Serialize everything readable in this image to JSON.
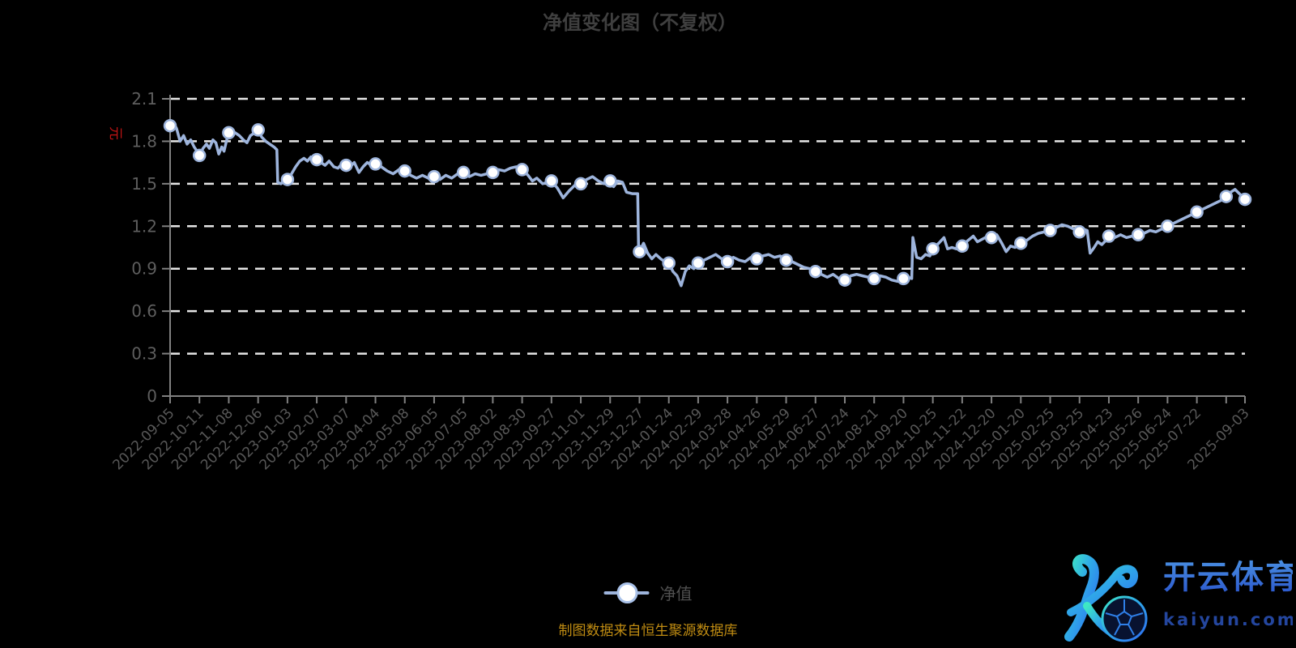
{
  "page": {
    "title": "净值变化图（不复权）",
    "source_note": "制图数据来自恒生聚源数据库",
    "watermark": {
      "brand": "开云体育",
      "domain": "kaiyun.com"
    }
  },
  "chart_data": {
    "type": "line",
    "title": "净值变化图（不复权）",
    "series_name": "净值",
    "unit": "元",
    "legend": {
      "label": "净值",
      "position": "bottom-center"
    },
    "grid": {
      "horizontal_dashed": true,
      "vertical": false
    },
    "colors": {
      "background": "#000000",
      "line": "#9db4dc",
      "marker_fill": "#ffffff",
      "marker_stroke": "#9db4dc",
      "gridline": "#e6e6e6",
      "axis": "#808080",
      "axis_label": "#5e5e5e",
      "title": "#3f3f3f",
      "unit_label": "#c01414",
      "source_note": "#c08c12"
    },
    "y_axis": {
      "min": 0,
      "max": 2.1,
      "interval": 0.3,
      "ticks": [
        0,
        0.3,
        0.6,
        0.9,
        1.2,
        1.5,
        1.8,
        2.1
      ],
      "tick_labels": [
        "0",
        "0.3",
        "0.6",
        "0.9",
        "1.2",
        "1.5",
        "1.8",
        "2.1"
      ]
    },
    "x_axis": {
      "labels": [
        "2022-09-05",
        "2022-10-11",
        "2022-11-08",
        "2022-12-06",
        "2023-01-03",
        "2023-02-07",
        "2023-03-07",
        "2023-04-04",
        "2023-05-08",
        "2023-06-05",
        "2023-07-05",
        "2023-08-02",
        "2023-08-30",
        "2023-09-27",
        "2023-11-01",
        "2023-11-29",
        "2023-12-27",
        "2024-01-24",
        "2024-02-29",
        "2024-03-28",
        "2024-04-26",
        "2024-05-29",
        "2024-06-27",
        "2024-07-24",
        "2024-08-21",
        "2024-09-20",
        "2024-10-25",
        "2024-11-22",
        "2024-12-20",
        "2025-01-20",
        "2025-02-25",
        "2025-03-25",
        "2025-04-23",
        "2025-05-26",
        "2025-06-24",
        "2025-07-22",
        "2025-09-03"
      ],
      "label_positions_u": [
        0,
        1,
        2,
        3,
        4,
        5,
        6,
        7,
        8,
        9,
        10,
        11,
        12,
        13,
        14,
        15,
        16,
        17,
        18,
        19,
        20,
        21,
        22,
        23,
        24,
        25,
        26,
        27,
        28,
        29,
        30,
        31,
        32,
        33,
        34,
        35,
        36.64
      ],
      "tick_positions_u": [
        0,
        1,
        2,
        3,
        4,
        5,
        6,
        7,
        8,
        9,
        10,
        11,
        12,
        13,
        14,
        15,
        16,
        17,
        18,
        19,
        20,
        21,
        22,
        23,
        24,
        25,
        26,
        27,
        28,
        29,
        30,
        31,
        32,
        33,
        34,
        35,
        36,
        36.64
      ],
      "u_max": 36.64
    },
    "markers_uv": [
      [
        0,
        1.91
      ],
      [
        1,
        1.7
      ],
      [
        2,
        1.86
      ],
      [
        3,
        1.88
      ],
      [
        4,
        1.53
      ],
      [
        5,
        1.67
      ],
      [
        6,
        1.63
      ],
      [
        7,
        1.64
      ],
      [
        8,
        1.59
      ],
      [
        9,
        1.55
      ],
      [
        10,
        1.58
      ],
      [
        11,
        1.58
      ],
      [
        12,
        1.6
      ],
      [
        13,
        1.52
      ],
      [
        14,
        1.5
      ],
      [
        15,
        1.52
      ],
      [
        16,
        1.02
      ],
      [
        17,
        0.94
      ],
      [
        18,
        0.94
      ],
      [
        19,
        0.95
      ],
      [
        20,
        0.97
      ],
      [
        21,
        0.96
      ],
      [
        22,
        0.88
      ],
      [
        23,
        0.82
      ],
      [
        24,
        0.83
      ],
      [
        25,
        0.83
      ],
      [
        26,
        1.04
      ],
      [
        27,
        1.06
      ],
      [
        28,
        1.12
      ],
      [
        29,
        1.08
      ],
      [
        30,
        1.17
      ],
      [
        31,
        1.16
      ],
      [
        32,
        1.13
      ],
      [
        33,
        1.14
      ],
      [
        34,
        1.2
      ],
      [
        35,
        1.3
      ],
      [
        36,
        1.41
      ],
      [
        36.64,
        1.39
      ]
    ],
    "dense_uv": [
      [
        0,
        1.91
      ],
      [
        0.12,
        1.93
      ],
      [
        0.22,
        1.89
      ],
      [
        0.34,
        1.8
      ],
      [
        0.46,
        1.84
      ],
      [
        0.58,
        1.78
      ],
      [
        0.7,
        1.81
      ],
      [
        0.82,
        1.76
      ],
      [
        0.92,
        1.73
      ],
      [
        1.0,
        1.7
      ],
      [
        1.12,
        1.75
      ],
      [
        1.24,
        1.78
      ],
      [
        1.34,
        1.75
      ],
      [
        1.46,
        1.81
      ],
      [
        1.56,
        1.79
      ],
      [
        1.66,
        1.71
      ],
      [
        1.76,
        1.76
      ],
      [
        1.84,
        1.73
      ],
      [
        1.92,
        1.8
      ],
      [
        2.0,
        1.86
      ],
      [
        2.1,
        1.84
      ],
      [
        2.22,
        1.86
      ],
      [
        2.36,
        1.84
      ],
      [
        2.5,
        1.81
      ],
      [
        2.62,
        1.79
      ],
      [
        2.74,
        1.84
      ],
      [
        2.88,
        1.86
      ],
      [
        3.0,
        1.88
      ],
      [
        3.12,
        1.83
      ],
      [
        3.26,
        1.8
      ],
      [
        3.4,
        1.78
      ],
      [
        3.54,
        1.76
      ],
      [
        3.64,
        1.74
      ],
      [
        3.67,
        1.51
      ],
      [
        3.78,
        1.5
      ],
      [
        3.88,
        1.52
      ],
      [
        4.0,
        1.53
      ],
      [
        4.14,
        1.57
      ],
      [
        4.28,
        1.62
      ],
      [
        4.42,
        1.66
      ],
      [
        4.56,
        1.68
      ],
      [
        4.68,
        1.66
      ],
      [
        4.8,
        1.69
      ],
      [
        4.9,
        1.68
      ],
      [
        5.0,
        1.67
      ],
      [
        5.14,
        1.65
      ],
      [
        5.28,
        1.63
      ],
      [
        5.42,
        1.66
      ],
      [
        5.58,
        1.62
      ],
      [
        5.72,
        1.61
      ],
      [
        5.86,
        1.64
      ],
      [
        6.0,
        1.63
      ],
      [
        6.14,
        1.62
      ],
      [
        6.28,
        1.65
      ],
      [
        6.44,
        1.58
      ],
      [
        6.58,
        1.62
      ],
      [
        6.72,
        1.65
      ],
      [
        6.86,
        1.63
      ],
      [
        7.0,
        1.64
      ],
      [
        7.2,
        1.62
      ],
      [
        7.4,
        1.59
      ],
      [
        7.6,
        1.57
      ],
      [
        7.8,
        1.6
      ],
      [
        8.0,
        1.59
      ],
      [
        8.2,
        1.56
      ],
      [
        8.4,
        1.54
      ],
      [
        8.6,
        1.56
      ],
      [
        8.8,
        1.54
      ],
      [
        9.0,
        1.55
      ],
      [
        9.2,
        1.53
      ],
      [
        9.4,
        1.56
      ],
      [
        9.6,
        1.54
      ],
      [
        9.8,
        1.57
      ],
      [
        10.0,
        1.58
      ],
      [
        10.2,
        1.55
      ],
      [
        10.4,
        1.57
      ],
      [
        10.6,
        1.56
      ],
      [
        10.8,
        1.57
      ],
      [
        11.0,
        1.58
      ],
      [
        11.2,
        1.6
      ],
      [
        11.4,
        1.59
      ],
      [
        11.6,
        1.61
      ],
      [
        11.8,
        1.62
      ],
      [
        12.0,
        1.6
      ],
      [
        12.2,
        1.56
      ],
      [
        12.35,
        1.52
      ],
      [
        12.5,
        1.54
      ],
      [
        12.7,
        1.5
      ],
      [
        12.85,
        1.51
      ],
      [
        13.0,
        1.52
      ],
      [
        13.2,
        1.47
      ],
      [
        13.4,
        1.4
      ],
      [
        13.6,
        1.45
      ],
      [
        13.8,
        1.49
      ],
      [
        14.0,
        1.5
      ],
      [
        14.2,
        1.53
      ],
      [
        14.4,
        1.55
      ],
      [
        14.6,
        1.52
      ],
      [
        14.8,
        1.5
      ],
      [
        15.0,
        1.52
      ],
      [
        15.12,
        1.48
      ],
      [
        15.26,
        1.52
      ],
      [
        15.42,
        1.51
      ],
      [
        15.56,
        1.44
      ],
      [
        15.75,
        1.43
      ],
      [
        15.94,
        1.43
      ],
      [
        15.97,
        1.03
      ],
      [
        16.0,
        1.02
      ],
      [
        16.14,
        1.08
      ],
      [
        16.28,
        1.01
      ],
      [
        16.42,
        0.97
      ],
      [
        16.56,
        1.0
      ],
      [
        16.72,
        0.97
      ],
      [
        16.86,
        0.95
      ],
      [
        17.0,
        0.94
      ],
      [
        17.14,
        0.88
      ],
      [
        17.28,
        0.85
      ],
      [
        17.42,
        0.78
      ],
      [
        17.56,
        0.88
      ],
      [
        17.7,
        0.92
      ],
      [
        17.85,
        0.9
      ],
      [
        18.0,
        0.94
      ],
      [
        18.2,
        0.96
      ],
      [
        18.4,
        0.98
      ],
      [
        18.6,
        1.0
      ],
      [
        18.8,
        0.97
      ],
      [
        19.0,
        0.95
      ],
      [
        19.2,
        0.98
      ],
      [
        19.4,
        0.96
      ],
      [
        19.6,
        0.95
      ],
      [
        19.8,
        0.98
      ],
      [
        20.0,
        0.97
      ],
      [
        20.2,
        0.99
      ],
      [
        20.4,
        1.0
      ],
      [
        20.6,
        0.98
      ],
      [
        20.8,
        0.99
      ],
      [
        21.0,
        0.96
      ],
      [
        21.2,
        0.95
      ],
      [
        21.4,
        0.93
      ],
      [
        21.6,
        0.91
      ],
      [
        21.8,
        0.9
      ],
      [
        22.0,
        0.88
      ],
      [
        22.2,
        0.86
      ],
      [
        22.4,
        0.84
      ],
      [
        22.6,
        0.86
      ],
      [
        22.8,
        0.83
      ],
      [
        23.0,
        0.82
      ],
      [
        23.2,
        0.85
      ],
      [
        23.4,
        0.86
      ],
      [
        23.6,
        0.85
      ],
      [
        23.8,
        0.84
      ],
      [
        24.0,
        0.83
      ],
      [
        24.2,
        0.85
      ],
      [
        24.4,
        0.84
      ],
      [
        24.6,
        0.82
      ],
      [
        24.8,
        0.81
      ],
      [
        25.0,
        0.83
      ],
      [
        25.15,
        0.84
      ],
      [
        25.28,
        0.83
      ],
      [
        25.32,
        1.12
      ],
      [
        25.45,
        0.98
      ],
      [
        25.6,
        0.97
      ],
      [
        25.75,
        1.0
      ],
      [
        25.9,
        0.99
      ],
      [
        26.0,
        1.04
      ],
      [
        26.2,
        1.08
      ],
      [
        26.38,
        1.12
      ],
      [
        26.5,
        1.04
      ],
      [
        26.65,
        1.05
      ],
      [
        26.8,
        1.04
      ],
      [
        27.0,
        1.06
      ],
      [
        27.2,
        1.1
      ],
      [
        27.38,
        1.13
      ],
      [
        27.52,
        1.09
      ],
      [
        27.7,
        1.11
      ],
      [
        27.88,
        1.13
      ],
      [
        28.0,
        1.12
      ],
      [
        28.18,
        1.14
      ],
      [
        28.35,
        1.08
      ],
      [
        28.5,
        1.02
      ],
      [
        28.65,
        1.06
      ],
      [
        28.8,
        1.05
      ],
      [
        29.0,
        1.08
      ],
      [
        29.2,
        1.1
      ],
      [
        29.4,
        1.13
      ],
      [
        29.6,
        1.15
      ],
      [
        29.8,
        1.16
      ],
      [
        30.0,
        1.17
      ],
      [
        30.2,
        1.19
      ],
      [
        30.4,
        1.21
      ],
      [
        30.6,
        1.2
      ],
      [
        30.8,
        1.18
      ],
      [
        31.0,
        1.16
      ],
      [
        31.12,
        1.18
      ],
      [
        31.26,
        1.17
      ],
      [
        31.36,
        1.01
      ],
      [
        31.5,
        1.05
      ],
      [
        31.62,
        1.09
      ],
      [
        31.76,
        1.07
      ],
      [
        31.9,
        1.1
      ],
      [
        32.0,
        1.13
      ],
      [
        32.2,
        1.12
      ],
      [
        32.4,
        1.14
      ],
      [
        32.6,
        1.12
      ],
      [
        32.8,
        1.13
      ],
      [
        33.0,
        1.14
      ],
      [
        33.2,
        1.15
      ],
      [
        33.4,
        1.17
      ],
      [
        33.6,
        1.16
      ],
      [
        33.8,
        1.18
      ],
      [
        34.0,
        1.2
      ],
      [
        34.2,
        1.22
      ],
      [
        34.4,
        1.24
      ],
      [
        34.6,
        1.26
      ],
      [
        34.8,
        1.28
      ],
      [
        35.0,
        1.3
      ],
      [
        35.2,
        1.32
      ],
      [
        35.4,
        1.34
      ],
      [
        35.6,
        1.36
      ],
      [
        35.8,
        1.38
      ],
      [
        36.0,
        1.41
      ],
      [
        36.15,
        1.44
      ],
      [
        36.3,
        1.46
      ],
      [
        36.45,
        1.43
      ],
      [
        36.64,
        1.39
      ]
    ]
  }
}
